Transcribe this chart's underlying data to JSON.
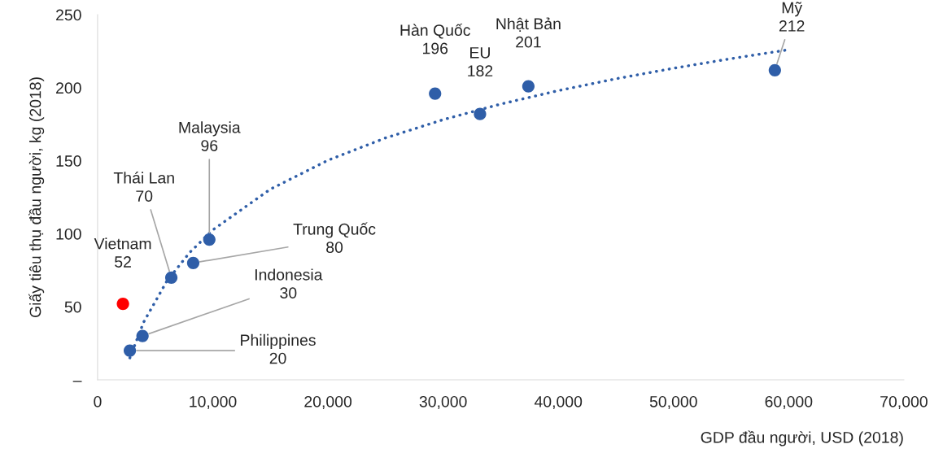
{
  "chart_data": {
    "type": "scatter",
    "xlabel": "GDP đầu người, USD (2018)",
    "ylabel": "Giấy tiêu thụ đầu người, kg (2018)",
    "xlim": [
      0,
      70000
    ],
    "ylim": [
      0,
      250
    ],
    "xticks": [
      {
        "value": 0,
        "label": "0"
      },
      {
        "value": 10000,
        "label": "10,000"
      },
      {
        "value": 20000,
        "label": "20,000"
      },
      {
        "value": 30000,
        "label": "30,000"
      },
      {
        "value": 40000,
        "label": "40,000"
      },
      {
        "value": 50000,
        "label": "50,000"
      },
      {
        "value": 60000,
        "label": "60,000"
      },
      {
        "value": 70000,
        "label": "70,000"
      }
    ],
    "yticks": [
      {
        "value": 0,
        "label": "–"
      },
      50,
      100,
      150,
      200,
      250
    ],
    "grid": false,
    "legend": false,
    "series": [
      {
        "marker": "circle",
        "color": "#ff0000",
        "x": [
          2200
        ],
        "values": [
          52
        ]
      },
      {
        "marker": "circle",
        "color": "#2f5ea8",
        "x": [
          2800,
          3900,
          6400,
          8300,
          9700,
          29300,
          33200,
          37400,
          58800
        ],
        "values": [
          20,
          30,
          70,
          80,
          96,
          196,
          182,
          201,
          212
        ]
      },
      {
        "type": "line",
        "marker": "none",
        "line_style": "dotted",
        "color": "#2f5ea8",
        "x": [
          2800,
          4000,
          6000,
          8000,
          10000,
          15000,
          20000,
          25000,
          30000,
          35000,
          40000,
          45000,
          50000,
          55000,
          60000
        ],
        "values": [
          15,
          39.5,
          67.4,
          87.2,
          102.6,
          130.5,
          150.3,
          165.6,
          178.1,
          188.8,
          198,
          206.1,
          213.3,
          219.9,
          226
        ]
      }
    ],
    "annotations": [
      {
        "text": "Vietnam\n52",
        "x": 2200,
        "y": 52
      },
      {
        "text": "Philippines\n20",
        "x": 2800,
        "y": 20
      },
      {
        "text": "Indonesia\n30",
        "x": 3900,
        "y": 30
      },
      {
        "text": "Thái Lan\n70",
        "x": 6400,
        "y": 70
      },
      {
        "text": "Trung Quốc\n80",
        "x": 8300,
        "y": 80
      },
      {
        "text": "Malaysia\n96",
        "x": 9700,
        "y": 96
      },
      {
        "text": "Hàn Quốc\n196",
        "x": 29300,
        "y": 196
      },
      {
        "text": "EU\n182",
        "x": 33200,
        "y": 182
      },
      {
        "text": "Nhật Bản\n201",
        "x": 37400,
        "y": 201
      },
      {
        "text": "Mỹ\n212",
        "x": 58800,
        "y": 212
      }
    ]
  }
}
